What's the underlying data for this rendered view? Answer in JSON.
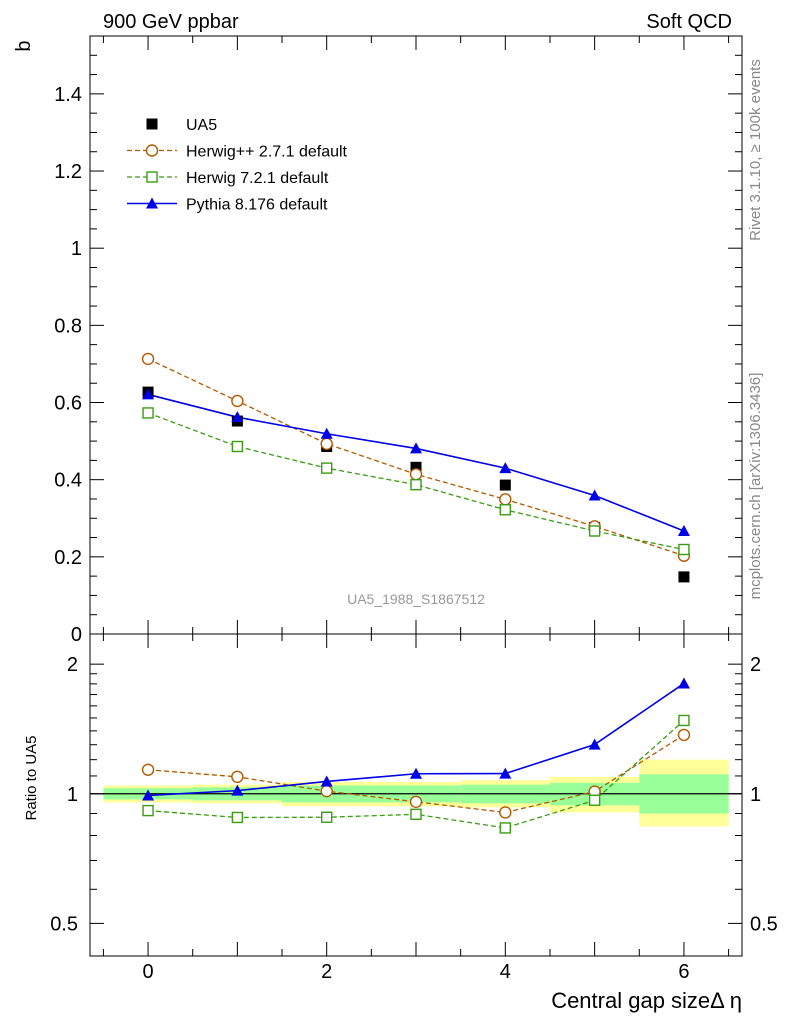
{
  "header": {
    "left": "900 GeV ppbar",
    "right": "Soft QCD"
  },
  "side_labels": {
    "rivet": "Rivet 3.1.10, ≥ 100k events",
    "mcplots": "mcplots.cern.ch [arXiv:1306.3436]"
  },
  "chart_data": [
    {
      "type": "line",
      "panel": "main",
      "ylabel": "b",
      "ylim": [
        0,
        1.55
      ],
      "xlim": [
        -0.65,
        6.65
      ],
      "yticks": [
        0,
        0.2,
        0.4,
        0.6,
        0.8,
        1,
        1.2,
        1.4
      ],
      "ytick_labels": [
        "0",
        "0.2",
        "0.4",
        "0.6",
        "0.8",
        "1",
        "1.2",
        "1.4"
      ],
      "annotation": "UA5_1988_S1867512",
      "legend": "top-left",
      "x": [
        0,
        1,
        2,
        3,
        4,
        5,
        6
      ],
      "series": [
        {
          "name": "UA5",
          "marker": "square-filled",
          "color": "#000000",
          "values": [
            0.627,
            0.552,
            0.486,
            0.432,
            0.386,
            0.276,
            0.148
          ]
        },
        {
          "name": "Herwig++ 2.7.1 default",
          "marker": "circle-open",
          "color": "#b35900",
          "dashed": true,
          "values": [
            0.713,
            0.604,
            0.493,
            0.414,
            0.349,
            0.279,
            0.203
          ]
        },
        {
          "name": "Herwig 7.2.1 default",
          "marker": "square-open",
          "color": "#3a9c14",
          "dashed": true,
          "values": [
            0.573,
            0.486,
            0.43,
            0.387,
            0.322,
            0.267,
            0.219
          ]
        },
        {
          "name": "Pythia 8.176 default",
          "marker": "triangle-filled",
          "color": "#0000e6",
          "dashed": false,
          "values": [
            0.621,
            0.562,
            0.519,
            0.481,
            0.43,
            0.359,
            0.267
          ]
        }
      ]
    },
    {
      "type": "line",
      "panel": "ratio",
      "ylabel": "Ratio to UA5",
      "xlabel": "Central gap sizeΔ η",
      "log_scale_y": true,
      "ylim": [
        0.42,
        2.35
      ],
      "yticks": [
        0.5,
        1,
        2
      ],
      "ytick_labels": [
        "0.5",
        "1",
        "2"
      ],
      "xticks": [
        0,
        2,
        4,
        6
      ],
      "xtick_labels": [
        "0",
        "2",
        "4",
        "6"
      ],
      "x": [
        0,
        1,
        2,
        3,
        4,
        5,
        6
      ],
      "bands": {
        "x_edges": [
          -0.5,
          0.5,
          1.5,
          2.5,
          3.5,
          4.5,
          5.5,
          6.5
        ],
        "inner": [
          [
            0.97,
            1.03
          ],
          [
            0.965,
            1.035
          ],
          [
            0.955,
            1.045
          ],
          [
            0.955,
            1.045
          ],
          [
            0.95,
            1.05
          ],
          [
            0.94,
            1.06
          ],
          [
            0.9,
            1.11
          ]
        ],
        "outer": [
          [
            0.955,
            1.045
          ],
          [
            0.95,
            1.05
          ],
          [
            0.935,
            1.065
          ],
          [
            0.935,
            1.065
          ],
          [
            0.93,
            1.075
          ],
          [
            0.905,
            1.095
          ],
          [
            0.84,
            1.2
          ]
        ],
        "inner_color": "#99ff99",
        "outer_color": "#ffff99"
      },
      "series": [
        {
          "name": "Herwig++ 2.7.1 default",
          "marker": "circle-open",
          "color": "#b35900",
          "dashed": true,
          "values": [
            1.137,
            1.095,
            1.014,
            0.958,
            0.905,
            1.012,
            1.37
          ]
        },
        {
          "name": "Herwig 7.2.1 default",
          "marker": "square-open",
          "color": "#3a9c14",
          "dashed": true,
          "values": [
            0.914,
            0.881,
            0.882,
            0.896,
            0.833,
            0.966,
            1.48
          ]
        },
        {
          "name": "Pythia 8.176 default",
          "marker": "triangle-filled",
          "color": "#0000e6",
          "dashed": false,
          "values": [
            0.991,
            1.017,
            1.068,
            1.113,
            1.114,
            1.301,
            1.804
          ]
        }
      ]
    }
  ]
}
